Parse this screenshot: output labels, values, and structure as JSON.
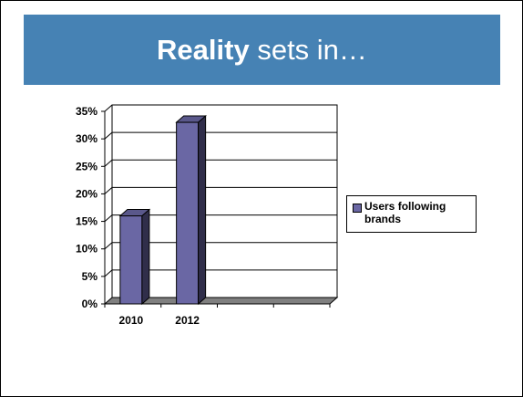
{
  "slide": {
    "title_bold": "Reality",
    "title_rest": " sets in…",
    "title_bar_color": "#4682B4"
  },
  "chart_data": {
    "type": "bar",
    "style": "3d-column",
    "categories": [
      "2010",
      "2012",
      "",
      ""
    ],
    "series": [
      {
        "name": "Users following brands",
        "values": [
          16,
          33,
          null,
          null
        ],
        "color": "#6A67A4"
      }
    ],
    "ylim": [
      0,
      35
    ],
    "yticks": [
      "0%",
      "5%",
      "10%",
      "15%",
      "20%",
      "25%",
      "30%",
      "35%"
    ],
    "ytick_values": [
      0,
      5,
      10,
      15,
      20,
      25,
      30,
      35
    ],
    "grid": true,
    "legend_position": "right",
    "title": "",
    "xlabel": "",
    "ylabel": ""
  }
}
